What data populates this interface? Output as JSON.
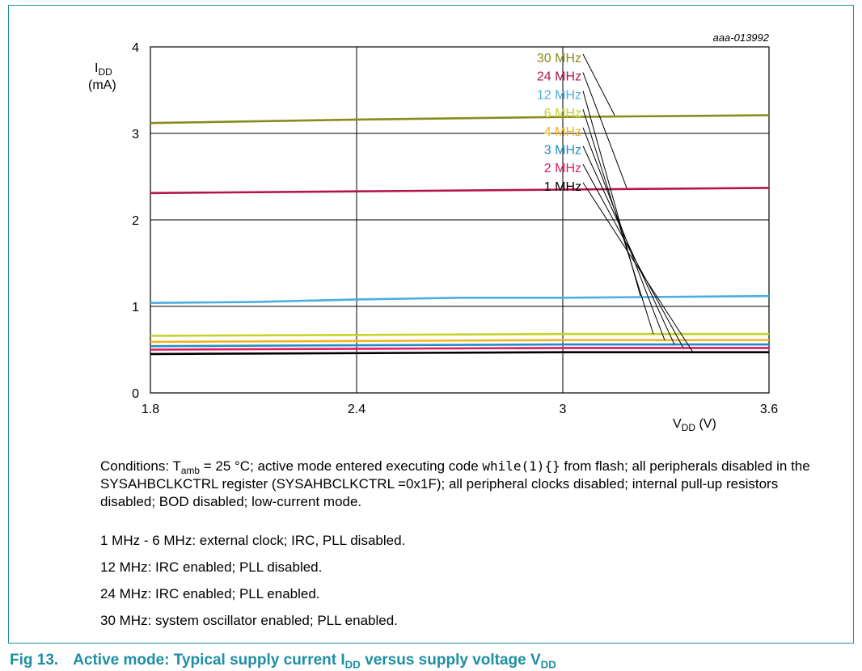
{
  "chart_data": {
    "type": "line",
    "figure_id": "aaa-013992",
    "ylabel_main": "I",
    "ylabel_sub": "DD",
    "ylabel_unit": "(mA)",
    "xlabel_main": "V",
    "xlabel_sub": "DD",
    "xlabel_unit": " (V)",
    "xlim": [
      1.8,
      3.6
    ],
    "ylim": [
      0,
      4
    ],
    "xticks": [
      1.8,
      2.4,
      3,
      3.6
    ],
    "xtick_labels": [
      "1.8",
      "2.4",
      "3",
      "3.6"
    ],
    "yticks": [
      0,
      1,
      2,
      3,
      4
    ],
    "ytick_labels": [
      "0",
      "1",
      "2",
      "3",
      "4"
    ],
    "grid": true,
    "series": [
      {
        "name": "30 MHz",
        "color": "#8a8a1e",
        "x": [
          1.8,
          2.4,
          3.0,
          3.6
        ],
        "y": [
          3.12,
          3.16,
          3.19,
          3.21
        ]
      },
      {
        "name": "24 MHz",
        "color": "#b5134f",
        "x": [
          1.8,
          2.4,
          3.0,
          3.6
        ],
        "y": [
          2.31,
          2.33,
          2.35,
          2.37
        ]
      },
      {
        "name": "12 MHz",
        "color": "#4aaee0",
        "x": [
          1.8,
          2.1,
          2.4,
          2.7,
          3.0,
          3.6
        ],
        "y": [
          1.04,
          1.05,
          1.08,
          1.1,
          1.1,
          1.12
        ]
      },
      {
        "name": "6 MHz",
        "color": "#c7d22a",
        "x": [
          1.8,
          2.4,
          3.0,
          3.6
        ],
        "y": [
          0.66,
          0.67,
          0.68,
          0.68
        ]
      },
      {
        "name": "4 MHz",
        "color": "#f4b321",
        "x": [
          1.8,
          2.4,
          3.0,
          3.6
        ],
        "y": [
          0.59,
          0.6,
          0.61,
          0.61
        ]
      },
      {
        "name": "3 MHz",
        "color": "#1f90c5",
        "x": [
          1.8,
          2.4,
          3.0,
          3.6
        ],
        "y": [
          0.54,
          0.55,
          0.56,
          0.56
        ]
      },
      {
        "name": "2 MHz",
        "color": "#e2195f",
        "x": [
          1.8,
          2.4,
          3.0,
          3.6
        ],
        "y": [
          0.5,
          0.51,
          0.52,
          0.52
        ]
      },
      {
        "name": "1 MHz",
        "color": "#000000",
        "x": [
          1.8,
          2.4,
          3.0,
          3.6
        ],
        "y": [
          0.45,
          0.46,
          0.47,
          0.47
        ]
      }
    ]
  },
  "notes": {
    "conditions_pre": "Conditions: T",
    "conditions_sub": "amb",
    "conditions_mid": " = 25 °C; active mode entered executing code ",
    "conditions_code": "while(1){}",
    "conditions_post": " from flash; all peripherals disabled in the SYSAHBCLKCTRL register (SYSAHBCLKCTRL =0x1F); all peripheral clocks disabled; internal pull-up resistors disabled; BOD disabled; low-current mode.",
    "lines": [
      "1 MHz - 6 MHz: external clock; IRC, PLL disabled.",
      "12 MHz: IRC enabled; PLL disabled.",
      "24 MHz: IRC enabled; PLL enabled.",
      "30 MHz: system oscillator enabled; PLL enabled."
    ]
  },
  "caption": {
    "fig": "Fig 13.",
    "t1": "Active mode: Typical supply current I",
    "s1": "DD",
    "t2": " versus supply voltage V",
    "s2": "DD"
  }
}
